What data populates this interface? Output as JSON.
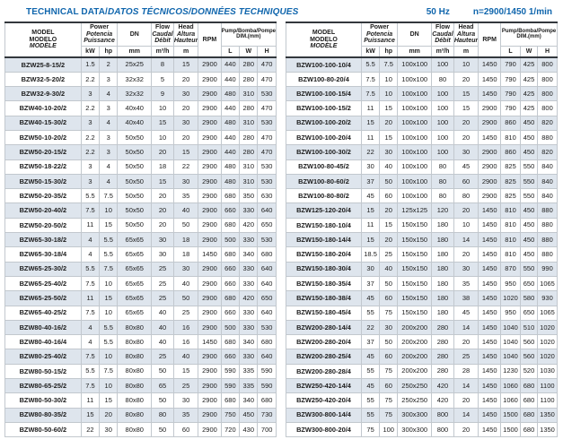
{
  "page": {
    "title_plain": "TECHNICAL DATA/",
    "title_italic": "DATOS TÉCNICOS/DONNÉES TECHNIQUES",
    "frequency": "50 Hz",
    "speed": "n=2900/1450 1/min"
  },
  "colors": {
    "title_blue": "#1066ad",
    "row_shade": "#dee5ed",
    "grid_line": "#c2c8ce",
    "heavy_line": "#33383d",
    "bottom_line": "#9aa2aa"
  },
  "header": {
    "model_lines": [
      "MODEL",
      "MODELO",
      "MODÈLE"
    ],
    "power_lines": [
      "Power",
      "Potencia",
      "Puissance"
    ],
    "power_units": [
      "kW",
      "hp"
    ],
    "dn_label": "DN",
    "dn_unit": "mm",
    "flow_lines": [
      "Flow",
      "Caudal",
      "Débit"
    ],
    "flow_unit": "m³/h",
    "head_lines": [
      "Head",
      "Altura",
      "Hauteur"
    ],
    "head_unit": "m",
    "rpm_label": "RPM",
    "dim_lines": [
      "Pump/Bomba/Pompe",
      "DIM.(mm)"
    ],
    "dim_units": [
      "L",
      "W",
      "H"
    ]
  },
  "tables": [
    {
      "rows": [
        [
          "BZW25-8-15/2",
          "1.5",
          "2",
          "25x25",
          "8",
          "15",
          "2900",
          "440",
          "280",
          "470"
        ],
        [
          "BZW32-5-20/2",
          "2.2",
          "3",
          "32x32",
          "5",
          "20",
          "2900",
          "440",
          "280",
          "470"
        ],
        [
          "BZW32-9-30/2",
          "3",
          "4",
          "32x32",
          "9",
          "30",
          "2900",
          "480",
          "310",
          "530"
        ],
        [
          "BZW40-10-20/2",
          "2.2",
          "3",
          "40x40",
          "10",
          "20",
          "2900",
          "440",
          "280",
          "470"
        ],
        [
          "BZW40-15-30/2",
          "3",
          "4",
          "40x40",
          "15",
          "30",
          "2900",
          "480",
          "310",
          "530"
        ],
        [
          "BZW50-10-20/2",
          "2.2",
          "3",
          "50x50",
          "10",
          "20",
          "2900",
          "440",
          "280",
          "470"
        ],
        [
          "BZW50-20-15/2",
          "2.2",
          "3",
          "50x50",
          "20",
          "15",
          "2900",
          "440",
          "280",
          "470"
        ],
        [
          "BZW50-18-22/2",
          "3",
          "4",
          "50x50",
          "18",
          "22",
          "2900",
          "480",
          "310",
          "530"
        ],
        [
          "BZW50-15-30/2",
          "3",
          "4",
          "50x50",
          "15",
          "30",
          "2900",
          "480",
          "310",
          "530"
        ],
        [
          "BZW50-20-35/2",
          "5.5",
          "7.5",
          "50x50",
          "20",
          "35",
          "2900",
          "680",
          "350",
          "630"
        ],
        [
          "BZW50-20-40/2",
          "7.5",
          "10",
          "50x50",
          "20",
          "40",
          "2900",
          "660",
          "330",
          "640"
        ],
        [
          "BZW50-20-50/2",
          "11",
          "15",
          "50x50",
          "20",
          "50",
          "2900",
          "680",
          "420",
          "650"
        ],
        [
          "BZW65-30-18/2",
          "4",
          "5.5",
          "65x65",
          "30",
          "18",
          "2900",
          "500",
          "330",
          "530"
        ],
        [
          "BZW65-30-18/4",
          "4",
          "5.5",
          "65x65",
          "30",
          "18",
          "1450",
          "680",
          "340",
          "680"
        ],
        [
          "BZW65-25-30/2",
          "5.5",
          "7.5",
          "65x65",
          "25",
          "30",
          "2900",
          "660",
          "330",
          "640"
        ],
        [
          "BZW65-25-40/2",
          "7.5",
          "10",
          "65x65",
          "25",
          "40",
          "2900",
          "660",
          "330",
          "640"
        ],
        [
          "BZW65-25-50/2",
          "11",
          "15",
          "65x65",
          "25",
          "50",
          "2900",
          "680",
          "420",
          "650"
        ],
        [
          "BZW65-40-25/2",
          "7.5",
          "10",
          "65x65",
          "40",
          "25",
          "2900",
          "660",
          "330",
          "640"
        ],
        [
          "BZW80-40-16/2",
          "4",
          "5.5",
          "80x80",
          "40",
          "16",
          "2900",
          "500",
          "330",
          "530"
        ],
        [
          "BZW80-40-16/4",
          "4",
          "5.5",
          "80x80",
          "40",
          "16",
          "1450",
          "680",
          "340",
          "680"
        ],
        [
          "BZW80-25-40/2",
          "7.5",
          "10",
          "80x80",
          "25",
          "40",
          "2900",
          "660",
          "330",
          "640"
        ],
        [
          "BZW80-50-15/2",
          "5.5",
          "7.5",
          "80x80",
          "50",
          "15",
          "2900",
          "590",
          "335",
          "590"
        ],
        [
          "BZW80-65-25/2",
          "7.5",
          "10",
          "80x80",
          "65",
          "25",
          "2900",
          "590",
          "335",
          "590"
        ],
        [
          "BZW80-50-30/2",
          "11",
          "15",
          "80x80",
          "50",
          "30",
          "2900",
          "680",
          "340",
          "680"
        ],
        [
          "BZW80-80-35/2",
          "15",
          "20",
          "80x80",
          "80",
          "35",
          "2900",
          "750",
          "450",
          "730"
        ],
        [
          "BZW80-50-60/2",
          "22",
          "30",
          "80x80",
          "50",
          "60",
          "2900",
          "720",
          "430",
          "700"
        ]
      ]
    },
    {
      "rows": [
        [
          "BZW100-100-10/4",
          "5.5",
          "7.5",
          "100x100",
          "100",
          "10",
          "1450",
          "790",
          "425",
          "800"
        ],
        [
          "BZW100-80-20/4",
          "7.5",
          "10",
          "100x100",
          "80",
          "20",
          "1450",
          "790",
          "425",
          "800"
        ],
        [
          "BZW100-100-15/4",
          "7.5",
          "10",
          "100x100",
          "100",
          "15",
          "1450",
          "790",
          "425",
          "800"
        ],
        [
          "BZW100-100-15/2",
          "11",
          "15",
          "100x100",
          "100",
          "15",
          "2900",
          "790",
          "425",
          "800"
        ],
        [
          "BZW100-100-20/2",
          "15",
          "20",
          "100x100",
          "100",
          "20",
          "2900",
          "860",
          "450",
          "820"
        ],
        [
          "BZW100-100-20/4",
          "11",
          "15",
          "100x100",
          "100",
          "20",
          "1450",
          "810",
          "450",
          "880"
        ],
        [
          "BZW100-100-30/2",
          "22",
          "30",
          "100x100",
          "100",
          "30",
          "2900",
          "860",
          "450",
          "820"
        ],
        [
          "BZW100-80-45/2",
          "30",
          "40",
          "100x100",
          "80",
          "45",
          "2900",
          "825",
          "550",
          "840"
        ],
        [
          "BZW100-80-60/2",
          "37",
          "50",
          "100x100",
          "80",
          "60",
          "2900",
          "825",
          "550",
          "840"
        ],
        [
          "BZW100-80-80/2",
          "45",
          "60",
          "100x100",
          "80",
          "80",
          "2900",
          "825",
          "550",
          "840"
        ],
        [
          "BZW125-120-20/4",
          "15",
          "20",
          "125x125",
          "120",
          "20",
          "1450",
          "810",
          "450",
          "880"
        ],
        [
          "BZW150-180-10/4",
          "11",
          "15",
          "150x150",
          "180",
          "10",
          "1450",
          "810",
          "450",
          "880"
        ],
        [
          "BZW150-180-14/4",
          "15",
          "20",
          "150x150",
          "180",
          "14",
          "1450",
          "810",
          "450",
          "880"
        ],
        [
          "BZW150-180-20/4",
          "18.5",
          "25",
          "150x150",
          "180",
          "20",
          "1450",
          "810",
          "450",
          "880"
        ],
        [
          "BZW150-180-30/4",
          "30",
          "40",
          "150x150",
          "180",
          "30",
          "1450",
          "870",
          "550",
          "990"
        ],
        [
          "BZW150-180-35/4",
          "37",
          "50",
          "150x150",
          "180",
          "35",
          "1450",
          "950",
          "650",
          "1065"
        ],
        [
          "BZW150-180-38/4",
          "45",
          "60",
          "150x150",
          "180",
          "38",
          "1450",
          "1020",
          "580",
          "930"
        ],
        [
          "BZW150-180-45/4",
          "55",
          "75",
          "150x150",
          "180",
          "45",
          "1450",
          "950",
          "650",
          "1065"
        ],
        [
          "BZW200-280-14/4",
          "22",
          "30",
          "200x200",
          "280",
          "14",
          "1450",
          "1040",
          "510",
          "1020"
        ],
        [
          "BZW200-280-20/4",
          "37",
          "50",
          "200x200",
          "280",
          "20",
          "1450",
          "1040",
          "560",
          "1020"
        ],
        [
          "BZW200-280-25/4",
          "45",
          "60",
          "200x200",
          "280",
          "25",
          "1450",
          "1040",
          "560",
          "1020"
        ],
        [
          "BZW200-280-28/4",
          "55",
          "75",
          "200x200",
          "280",
          "28",
          "1450",
          "1230",
          "520",
          "1030"
        ],
        [
          "BZW250-420-14/4",
          "45",
          "60",
          "250x250",
          "420",
          "14",
          "1450",
          "1060",
          "680",
          "1100"
        ],
        [
          "BZW250-420-20/4",
          "55",
          "75",
          "250x250",
          "420",
          "20",
          "1450",
          "1060",
          "680",
          "1100"
        ],
        [
          "BZW300-800-14/4",
          "55",
          "75",
          "300x300",
          "800",
          "14",
          "1450",
          "1500",
          "680",
          "1350"
        ],
        [
          "BZW300-800-20/4",
          "75",
          "100",
          "300x300",
          "800",
          "20",
          "1450",
          "1500",
          "680",
          "1350"
        ]
      ]
    }
  ]
}
